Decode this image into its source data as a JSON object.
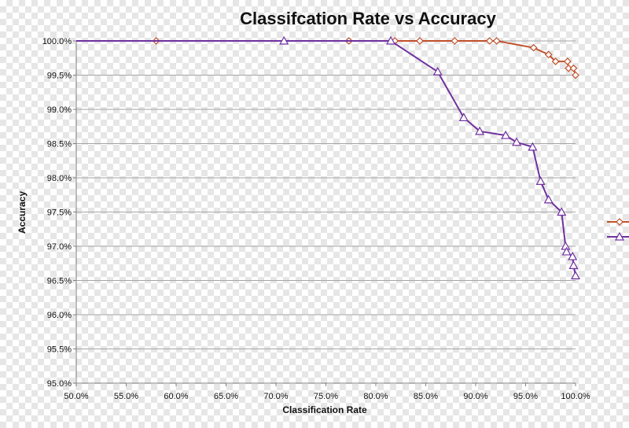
{
  "chart_data": {
    "type": "line",
    "title": "Classifcation Rate vs Accuracy",
    "xlabel": "Classification Rate",
    "ylabel": "Accuracy",
    "xlim": [
      50.0,
      100.0
    ],
    "ylim": [
      95.0,
      100.0
    ],
    "x_ticks": [
      "50.0%",
      "55.0%",
      "60.0%",
      "65.0%",
      "70.0%",
      "75.0%",
      "80.0%",
      "85.0%",
      "90.0%",
      "95.0%",
      "100.0%"
    ],
    "y_ticks": [
      "95.0%",
      "95.5%",
      "96.0%",
      "96.5%",
      "97.0%",
      "97.5%",
      "98.0%",
      "98.5%",
      "99.0%",
      "99.5%",
      "100.0%"
    ],
    "grid": "horizontal",
    "legend_position": "right",
    "series": [
      {
        "color": "#c0502a",
        "marker": "diamond",
        "points": [
          [
            50.0,
            100.0
          ],
          [
            58.0,
            100.0
          ],
          [
            77.3,
            100.0
          ],
          [
            81.9,
            100.0
          ],
          [
            84.4,
            100.0
          ],
          [
            87.9,
            100.0
          ],
          [
            91.4,
            100.0
          ],
          [
            92.1,
            100.0
          ],
          [
            95.8,
            99.9
          ],
          [
            97.3,
            99.8
          ],
          [
            98.0,
            99.7
          ],
          [
            99.2,
            99.7
          ],
          [
            99.3,
            99.6
          ],
          [
            99.8,
            99.6
          ],
          [
            100.0,
            99.5
          ]
        ]
      },
      {
        "color": "#7030a0",
        "marker": "triangle",
        "points": [
          [
            50.0,
            100.0
          ],
          [
            70.8,
            100.0
          ],
          [
            81.5,
            100.0
          ],
          [
            86.2,
            99.55
          ],
          [
            88.8,
            98.88
          ],
          [
            90.4,
            98.68
          ],
          [
            93.0,
            98.62
          ],
          [
            94.1,
            98.52
          ],
          [
            95.7,
            98.45
          ],
          [
            96.5,
            97.95
          ],
          [
            97.3,
            97.68
          ],
          [
            98.6,
            97.5
          ],
          [
            99.0,
            97.0
          ],
          [
            99.1,
            96.92
          ],
          [
            99.7,
            96.85
          ],
          [
            99.8,
            96.72
          ],
          [
            100.0,
            96.57
          ]
        ]
      }
    ]
  }
}
